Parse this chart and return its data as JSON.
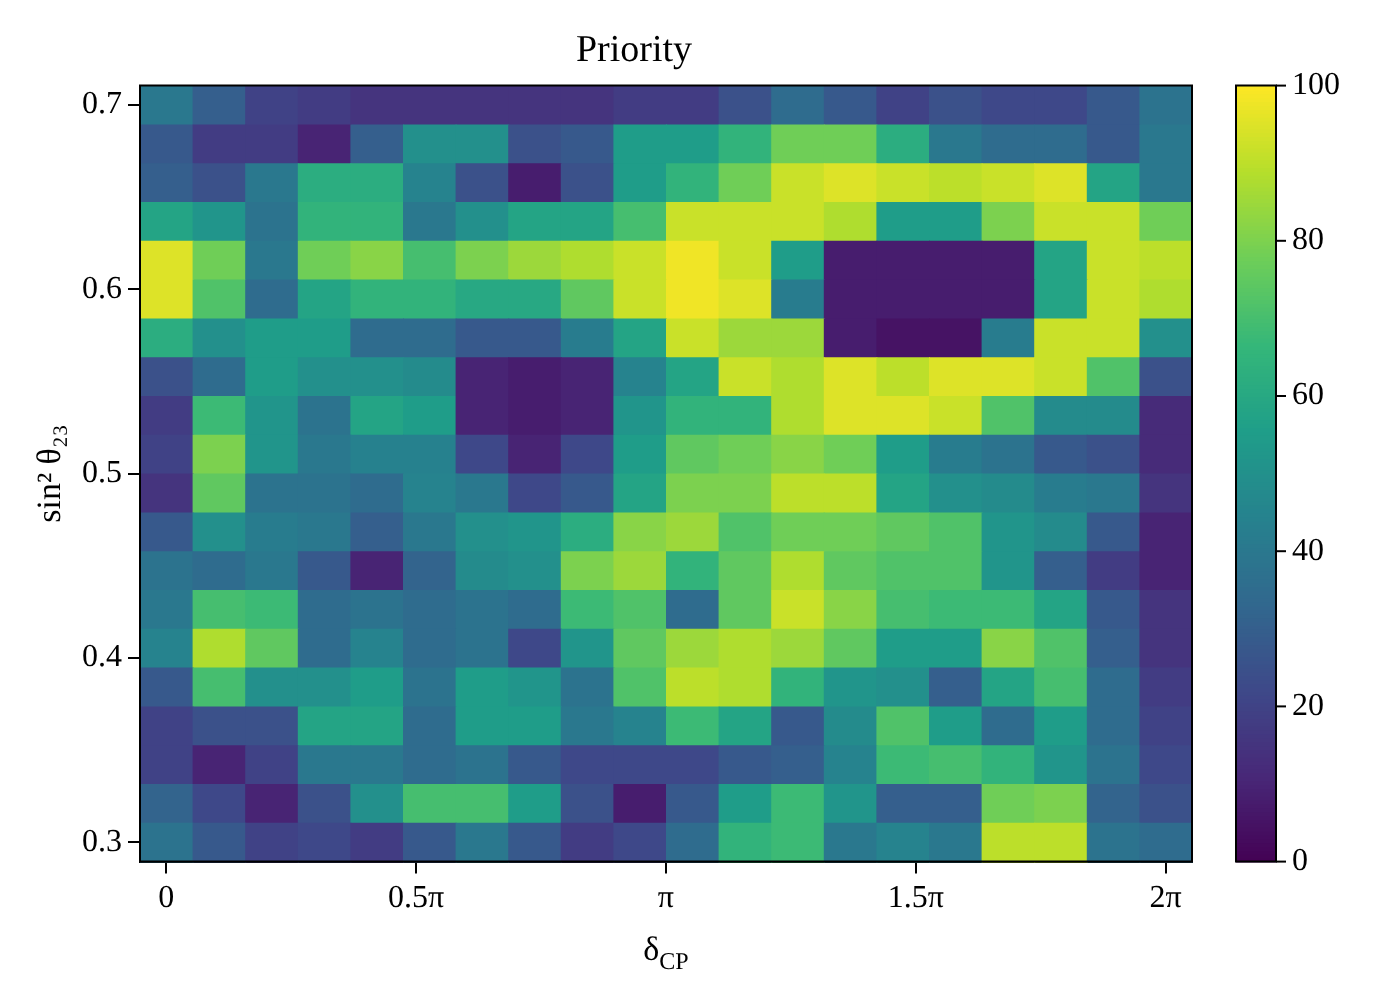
{
  "chart_data": {
    "type": "heatmap",
    "title": "Priority",
    "xlabel": "δ$_{CP}$",
    "ylabel": "sin² θ₂₃",
    "xlim": [
      -0.165,
      6.449
    ],
    "ylim": [
      0.2895,
      0.7105
    ],
    "xticks": [
      0,
      {
        "value": 1.5708,
        "label": "0.5π"
      },
      {
        "value": 3.1416,
        "label": "π"
      },
      {
        "value": 4.7124,
        "label": "1.5π"
      },
      {
        "value": 6.2832,
        "label": "2π"
      }
    ],
    "yticks": [
      0.3,
      0.4,
      0.5,
      0.6,
      0.7
    ],
    "clim": [
      0,
      100
    ],
    "cticks": [
      0,
      20,
      40,
      60,
      80,
      100
    ],
    "cells": [
      [
        40,
        30,
        20,
        18,
        15,
        15,
        15,
        15,
        15,
        18,
        18,
        25,
        35,
        28,
        20,
        25,
        22,
        22,
        28,
        38
      ],
      [
        28,
        18,
        18,
        10,
        30,
        50,
        50,
        25,
        28,
        55,
        55,
        65,
        78,
        78,
        62,
        40,
        35,
        35,
        28,
        40
      ],
      [
        30,
        25,
        40,
        62,
        62,
        45,
        25,
        8,
        25,
        55,
        65,
        78,
        92,
        95,
        92,
        90,
        92,
        95,
        58,
        40
      ],
      [
        58,
        52,
        38,
        65,
        65,
        40,
        50,
        58,
        58,
        70,
        92,
        92,
        92,
        88,
        55,
        55,
        80,
        92,
        92,
        78
      ],
      [
        95,
        78,
        40,
        78,
        82,
        70,
        80,
        85,
        88,
        92,
        98,
        92,
        55,
        8,
        8,
        8,
        8,
        58,
        92,
        90
      ],
      [
        95,
        72,
        35,
        58,
        65,
        65,
        60,
        60,
        75,
        92,
        98,
        95,
        42,
        8,
        8,
        8,
        8,
        58,
        92,
        88
      ],
      [
        62,
        50,
        55,
        55,
        35,
        35,
        28,
        28,
        42,
        58,
        92,
        85,
        85,
        8,
        5,
        5,
        42,
        92,
        92,
        50
      ],
      [
        25,
        35,
        55,
        50,
        50,
        48,
        10,
        8,
        10,
        45,
        58,
        92,
        88,
        95,
        90,
        95,
        95,
        92,
        72,
        25
      ],
      [
        18,
        68,
        52,
        38,
        58,
        55,
        10,
        8,
        10,
        52,
        65,
        65,
        88,
        95,
        95,
        92,
        72,
        48,
        48,
        12
      ],
      [
        20,
        80,
        52,
        40,
        44,
        44,
        22,
        10,
        22,
        55,
        75,
        78,
        82,
        78,
        55,
        42,
        38,
        28,
        25,
        12
      ],
      [
        15,
        75,
        38,
        38,
        35,
        45,
        40,
        22,
        28,
        58,
        80,
        80,
        90,
        90,
        58,
        50,
        48,
        42,
        40,
        15
      ],
      [
        28,
        50,
        42,
        40,
        30,
        40,
        50,
        52,
        62,
        82,
        85,
        72,
        78,
        78,
        75,
        72,
        52,
        48,
        28,
        10
      ],
      [
        38,
        35,
        40,
        28,
        10,
        32,
        48,
        50,
        80,
        85,
        65,
        75,
        88,
        75,
        72,
        72,
        52,
        30,
        18,
        10
      ],
      [
        40,
        70,
        68,
        35,
        38,
        35,
        38,
        35,
        68,
        72,
        35,
        75,
        92,
        82,
        70,
        68,
        68,
        58,
        28,
        15
      ],
      [
        45,
        88,
        75,
        35,
        45,
        35,
        38,
        22,
        52,
        75,
        85,
        88,
        85,
        75,
        55,
        55,
        82,
        72,
        30,
        15
      ],
      [
        28,
        70,
        50,
        50,
        55,
        38,
        55,
        52,
        38,
        72,
        90,
        88,
        65,
        52,
        50,
        30,
        58,
        70,
        35,
        18
      ],
      [
        20,
        25,
        25,
        58,
        58,
        35,
        55,
        55,
        40,
        45,
        68,
        58,
        28,
        48,
        72,
        55,
        35,
        55,
        35,
        20
      ],
      [
        20,
        10,
        20,
        40,
        40,
        35,
        38,
        28,
        22,
        22,
        22,
        28,
        30,
        45,
        68,
        70,
        65,
        52,
        38,
        22
      ],
      [
        32,
        22,
        10,
        25,
        50,
        70,
        70,
        55,
        25,
        8,
        28,
        55,
        68,
        52,
        30,
        30,
        78,
        80,
        32,
        25
      ],
      [
        38,
        28,
        20,
        22,
        18,
        28,
        40,
        28,
        18,
        22,
        35,
        65,
        68,
        40,
        45,
        40,
        90,
        90,
        38,
        35
      ]
    ]
  }
}
